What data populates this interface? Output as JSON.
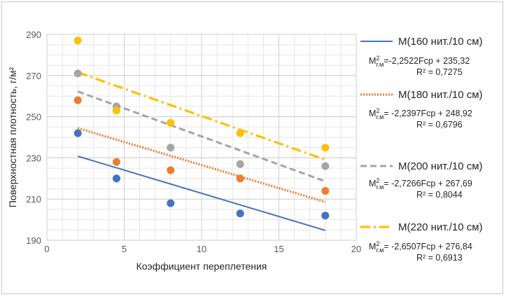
{
  "chart_data": {
    "type": "scatter",
    "title": "",
    "xlabel": "Коэффициент переплетения",
    "ylabel": "Поверхностная плотность, г/м²",
    "xlim": [
      0,
      20
    ],
    "ylim": [
      190,
      290
    ],
    "x_ticks": [
      0,
      5,
      10,
      15,
      20
    ],
    "y_ticks": [
      190,
      210,
      230,
      250,
      270,
      290
    ],
    "grid": true,
    "legend_position": "right",
    "x": [
      2,
      4.5,
      8,
      12.5,
      18
    ],
    "series": [
      {
        "name": "М(160 нит./10 см)",
        "color": "#4472c4",
        "values": [
          242,
          220,
          208,
          203,
          202
        ],
        "trend": {
          "slope": -2.2522,
          "intercept": 235.32,
          "style": "solid"
        },
        "eq_prefix": "М",
        "eq_sup": "2",
        "eq_sub": "г.м",
        "eq_body": "=-2,2522Fср + 235,32",
        "r2": "R² = 0,7275"
      },
      {
        "name": "М(180 нит./10 см)",
        "color": "#ed7d31",
        "values": [
          258,
          228,
          224,
          220,
          214
        ],
        "trend": {
          "slope": -2.2397,
          "intercept": 248.92,
          "style": "dotted"
        },
        "eq_prefix": "М",
        "eq_sup": "2",
        "eq_sub": "г.м",
        "eq_body": "= -2,2397Fср + 248,92",
        "r2": "R² = 0,6796"
      },
      {
        "name": "М(200 нит./10 см)",
        "color": "#a5a5a5",
        "values": [
          271,
          255,
          235,
          227,
          226
        ],
        "trend": {
          "slope": -2.7266,
          "intercept": 267.69,
          "style": "dashed"
        },
        "eq_prefix": "М",
        "eq_sup": "2",
        "eq_sub": "г.м",
        "eq_body": "= -2,7266Fср + 267,69",
        "r2": "R² = 0,8044"
      },
      {
        "name": "М(220 нит./10 см)",
        "color": "#ffc000",
        "values": [
          287,
          253,
          247,
          242,
          235
        ],
        "trend": {
          "slope": -2.6507,
          "intercept": 276.84,
          "style": "dashdot"
        },
        "eq_prefix": "М",
        "eq_sup": "2",
        "eq_sub": "г.м",
        "eq_body": "= -2,6507Fср  + 276,84",
        "r2": "R² = 0,6913"
      }
    ]
  }
}
